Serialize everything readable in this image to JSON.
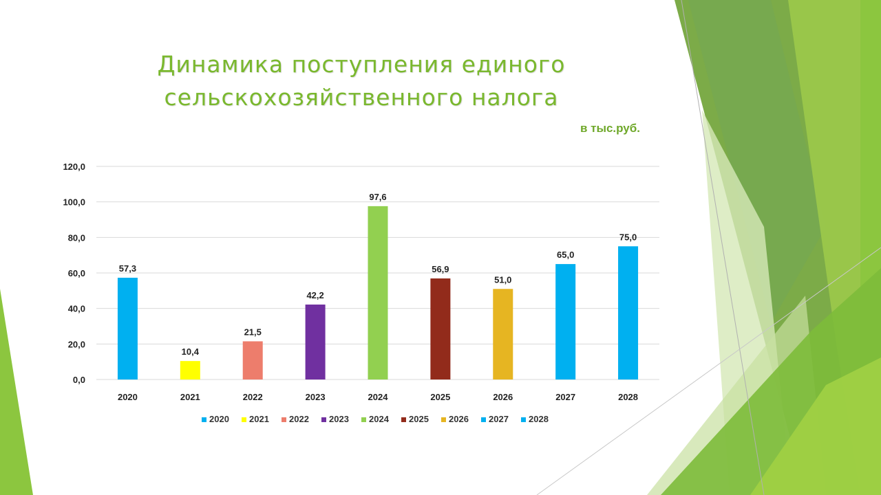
{
  "slide": {
    "title_line1": "Динамика поступления единого",
    "title_line2": "сельскохозяйственного налога",
    "unit": "в тыс.руб."
  },
  "colors": {
    "accent_green": "#7ab82e",
    "gridline": "#d9d9d9"
  },
  "chart_data": {
    "type": "bar",
    "categories": [
      "2020",
      "2021",
      "2022",
      "2023",
      "2024",
      "2025",
      "2026",
      "2027",
      "2028"
    ],
    "values": [
      57.3,
      10.4,
      21.5,
      42.2,
      97.6,
      56.9,
      51.0,
      65.0,
      75.0
    ],
    "data_labels": [
      "57,3",
      "10,4",
      "21,5",
      "42,2",
      "97,6",
      "56,9",
      "51,0",
      "65,0",
      "75,0"
    ],
    "bar_colors": [
      "#00b0f0",
      "#ffff00",
      "#ed7d6c",
      "#7030a0",
      "#92d050",
      "#922b1b",
      "#e6b522",
      "#00b0f0",
      "#00b0f0"
    ],
    "ylim": [
      0,
      120
    ],
    "yticks": [
      0,
      20,
      40,
      60,
      80,
      100,
      120
    ],
    "ytick_labels": [
      "0,0",
      "20,0",
      "40,0",
      "60,0",
      "80,0",
      "100,0",
      "120,0"
    ],
    "grid": true,
    "legend": {
      "position": "bottom",
      "entries": [
        "2020",
        "2021",
        "2022",
        "2023",
        "2024",
        "2025",
        "2026",
        "2027",
        "2028"
      ]
    },
    "title": "",
    "xlabel": "",
    "ylabel": ""
  }
}
